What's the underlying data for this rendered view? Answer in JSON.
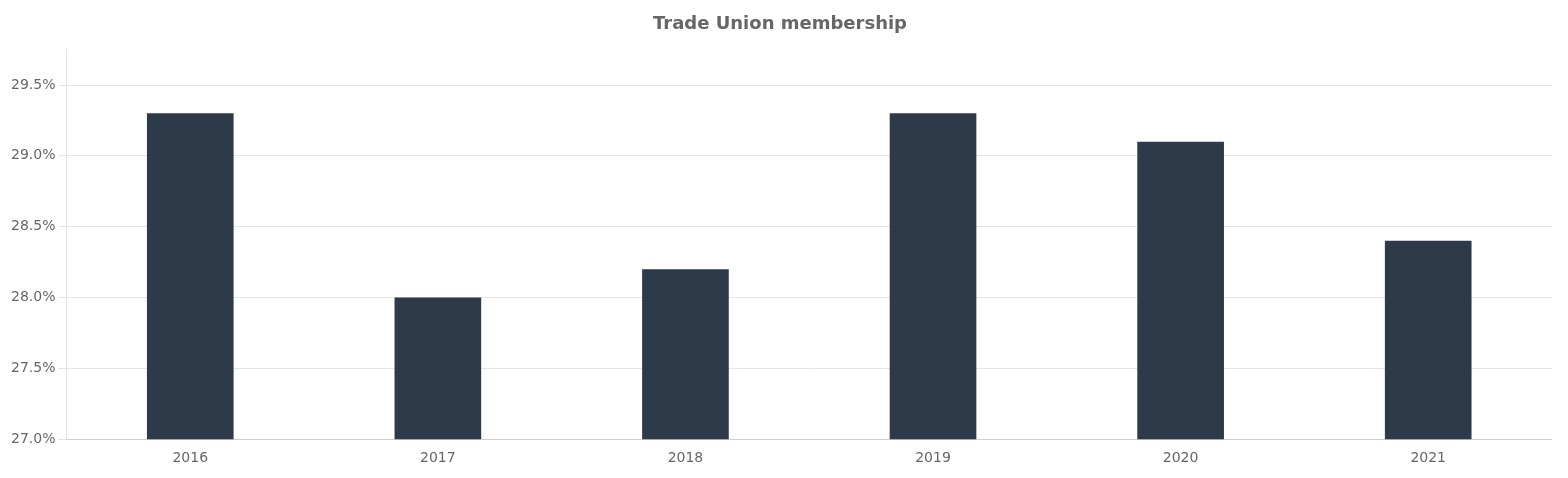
{
  "chart_data": {
    "type": "bar",
    "title": "Trade Union membership",
    "categories": [
      "2016",
      "2017",
      "2018",
      "2019",
      "2020",
      "2021"
    ],
    "values": [
      29.3,
      28.0,
      28.2,
      29.3,
      29.1,
      28.4
    ],
    "color": "#2d3a4a",
    "ylim": [
      27.0,
      29.75
    ],
    "yticks": [
      {
        "value": 27.0,
        "label": "27.0%"
      },
      {
        "value": 27.5,
        "label": "27.5%"
      },
      {
        "value": 28.0,
        "label": "28.0%"
      },
      {
        "value": 28.5,
        "label": "28.5%"
      },
      {
        "value": 29.0,
        "label": "29.0%"
      },
      {
        "value": 29.5,
        "label": "29.5%"
      }
    ],
    "grid": true
  }
}
